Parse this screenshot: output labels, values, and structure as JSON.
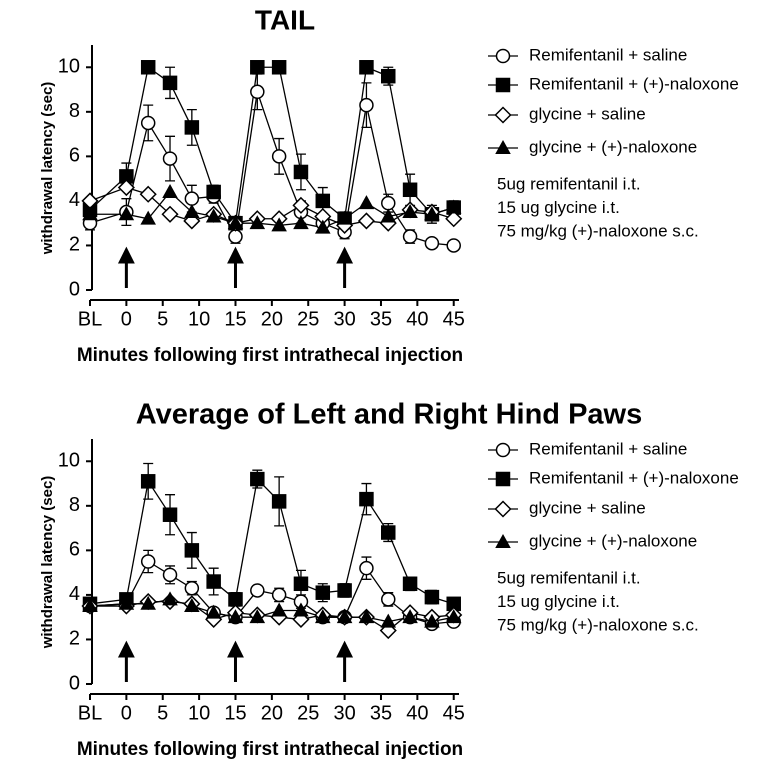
{
  "chart_data": [
    {
      "type": "line",
      "title": "TAIL",
      "y_label": "withdrawal latency  (sec)",
      "x_label": "Minutes following first intrathecal injection",
      "x": [
        -5,
        0,
        3,
        6,
        9,
        12,
        15,
        18,
        21,
        24,
        27,
        30,
        33,
        36,
        39,
        42,
        45
      ],
      "xlim": [
        -5,
        46
      ],
      "xticks": [
        {
          "value": -5,
          "label": "BL"
        },
        0,
        5,
        10,
        15,
        20,
        25,
        30,
        35,
        40,
        45
      ],
      "ylim": [
        0,
        11
      ],
      "yticks": [
        0,
        2,
        4,
        6,
        8,
        10
      ],
      "arrows": [
        0,
        15,
        30
      ],
      "series": [
        {
          "name": "Remifentanil + saline",
          "color": "#000000",
          "marker": "circle",
          "filled": false,
          "values": [
            3.0,
            3.5,
            7.5,
            5.9,
            4.1,
            4.2,
            2.4,
            8.9,
            6.0,
            3.5,
            3.0,
            2.6,
            8.3,
            3.9,
            2.4,
            2.1,
            2.0
          ],
          "errors": [
            0.3,
            0.6,
            0.8,
            1.0,
            0.6,
            0.3,
            0.3,
            0.8,
            0.8,
            0.5,
            0.3,
            0.3,
            1.0,
            0.4,
            0.3,
            0.2,
            0.2
          ]
        },
        {
          "name": "Remifentanil + (+)-naloxone",
          "color": "#000000",
          "marker": "square",
          "filled": true,
          "values": [
            3.6,
            5.1,
            10,
            9.3,
            7.3,
            4.4,
            3.0,
            10,
            10,
            5.3,
            4.0,
            3.2,
            10,
            9.6,
            4.5,
            3.4,
            3.7
          ],
          "errors": [
            0.3,
            0.6,
            0,
            0.7,
            0.8,
            0.3,
            0.3,
            0,
            0,
            0.8,
            0.6,
            0.3,
            0,
            0.4,
            0.7,
            0.4,
            0.3
          ]
        },
        {
          "name": "glycine + saline",
          "color": "#000000",
          "marker": "diamond",
          "filled": false,
          "values": [
            4.0,
            4.6,
            4.3,
            3.4,
            3.1,
            3.4,
            3.0,
            3.2,
            3.2,
            3.8,
            3.3,
            2.9,
            3.1,
            3.0,
            3.6,
            3.5,
            3.2
          ]
        },
        {
          "name": "glycine + (+)-naloxone",
          "color": "#000000",
          "marker": "triangle",
          "filled": true,
          "values": [
            3.4,
            3.4,
            3.2,
            4.4,
            3.5,
            3.3,
            3.0,
            3.0,
            2.9,
            3.0,
            2.8,
            3.2,
            3.9,
            3.3,
            3.5,
            3.4,
            3.7
          ]
        }
      ],
      "notes": [
        "5ug remifentanil i.t.",
        "15 ug glycine i.t.",
        "75 mg/kg  (+)-naloxone s.c."
      ]
    },
    {
      "type": "line",
      "title": "Average of Left and Right Hind Paws",
      "y_label": "withdrawal latency  (sec)",
      "x_label": "Minutes following first intrathecal injection",
      "x": [
        -5,
        0,
        3,
        6,
        9,
        12,
        15,
        18,
        21,
        24,
        27,
        30,
        33,
        36,
        39,
        42,
        45
      ],
      "xlim": [
        -5,
        46
      ],
      "xticks": [
        {
          "value": -5,
          "label": "BL"
        },
        0,
        5,
        10,
        15,
        20,
        25,
        30,
        35,
        40,
        45
      ],
      "ylim": [
        0,
        11
      ],
      "yticks": [
        0,
        2,
        4,
        6,
        8,
        10
      ],
      "arrows": [
        0,
        15,
        30
      ],
      "series": [
        {
          "name": "Remifentanil + saline",
          "color": "#000000",
          "marker": "circle",
          "filled": false,
          "values": [
            3.5,
            3.6,
            5.5,
            4.9,
            4.3,
            3.2,
            3.0,
            4.2,
            4.0,
            3.7,
            3.0,
            3.0,
            5.2,
            3.8,
            3.0,
            2.7,
            2.8
          ],
          "errors": [
            0.2,
            0.2,
            0.5,
            0.4,
            0.3,
            0.2,
            0.2,
            0.2,
            0.3,
            0.3,
            0.2,
            0.2,
            0.5,
            0.3,
            0.2,
            0.2,
            0.2
          ]
        },
        {
          "name": "Remifentanil + (+)-naloxone",
          "color": "#000000",
          "marker": "square",
          "filled": true,
          "values": [
            3.6,
            3.8,
            9.1,
            7.6,
            6.0,
            4.6,
            3.8,
            9.2,
            8.2,
            4.5,
            4.1,
            4.2,
            8.3,
            6.8,
            4.5,
            3.9,
            3.6
          ],
          "errors": [
            0.2,
            0.2,
            0.8,
            0.9,
            0.8,
            0.6,
            0.3,
            0.4,
            1.1,
            0.6,
            0.4,
            0.3,
            0.7,
            0.4,
            0.3,
            0.3,
            0.2
          ]
        },
        {
          "name": "glycine + saline",
          "color": "#000000",
          "marker": "diamond",
          "filled": false,
          "values": [
            3.5,
            3.5,
            3.7,
            3.7,
            3.6,
            2.9,
            3.2,
            3.1,
            3.0,
            2.9,
            3.1,
            3.0,
            3.0,
            2.4,
            3.2,
            3.0,
            3.1
          ]
        },
        {
          "name": "glycine + (+)-naloxone",
          "color": "#000000",
          "marker": "triangle",
          "filled": true,
          "values": [
            3.5,
            3.6,
            3.6,
            3.8,
            3.5,
            3.2,
            3.0,
            3.0,
            3.3,
            3.3,
            3.0,
            3.0,
            3.0,
            2.8,
            3.0,
            2.8,
            3.0
          ]
        }
      ],
      "notes": [
        "5ug remifentanil i.t.",
        "15 ug glycine i.t.",
        "75 mg/kg  (+)-naloxone s.c."
      ]
    }
  ]
}
